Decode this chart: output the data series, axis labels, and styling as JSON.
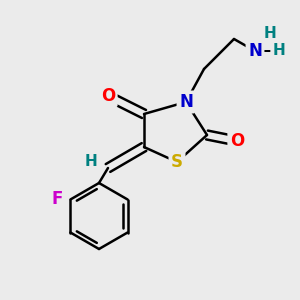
{
  "background_color": "#ebebeb",
  "atom_colors": {
    "C": "#000000",
    "N": "#0000cc",
    "O": "#ff0000",
    "S": "#ccaa00",
    "F": "#cc00cc",
    "H": "#008080"
  },
  "bond_color": "#000000",
  "bond_width": 1.8,
  "font_size_atoms": 12
}
